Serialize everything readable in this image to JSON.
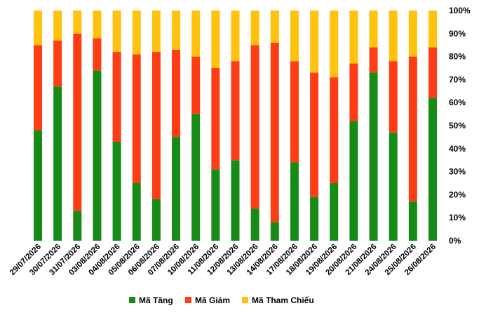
{
  "chart_data": {
    "type": "bar",
    "stacked": true,
    "percent": true,
    "categories": [
      "29/07/2026",
      "30/07/2026",
      "31/07/2026",
      "03/08/2026",
      "04/08/2026",
      "05/08/2026",
      "06/08/2026",
      "07/08/2026",
      "10/08/2026",
      "11/08/2026",
      "12/08/2026",
      "13/08/2026",
      "14/08/2026",
      "17/08/2026",
      "18/08/2026",
      "19/08/2026",
      "20/08/2026",
      "21/08/2026",
      "24/08/2026",
      "25/08/2026",
      "26/08/2026"
    ],
    "series": [
      {
        "name": "Mã Tăng",
        "color": "#168C16",
        "values": [
          48,
          67,
          13,
          74,
          43,
          25,
          18,
          45,
          55,
          31,
          35,
          14,
          8,
          34,
          19,
          25,
          52,
          73,
          47,
          17,
          62
        ]
      },
      {
        "name": "Mã Giảm",
        "color": "#FF3D14",
        "values": [
          37,
          20,
          77,
          14,
          39,
          56,
          64,
          38,
          25,
          44,
          43,
          71,
          78,
          44,
          54,
          46,
          25,
          11,
          31,
          63,
          22
        ]
      },
      {
        "name": "Mã Tham Chiếu",
        "color": "#FFC20E",
        "values": [
          15,
          13,
          10,
          12,
          18,
          19,
          18,
          17,
          20,
          25,
          22,
          15,
          14,
          22,
          27,
          29,
          23,
          16,
          22,
          20,
          16
        ]
      }
    ],
    "yticks": [
      "0%",
      "10%",
      "20%",
      "30%",
      "40%",
      "50%",
      "60%",
      "70%",
      "80%",
      "90%",
      "100%"
    ],
    "ylim": [
      0,
      100
    ],
    "y_axis_position": "right",
    "grid": false,
    "legend_position": "bottom",
    "title": "",
    "xlabel": "",
    "ylabel": ""
  }
}
